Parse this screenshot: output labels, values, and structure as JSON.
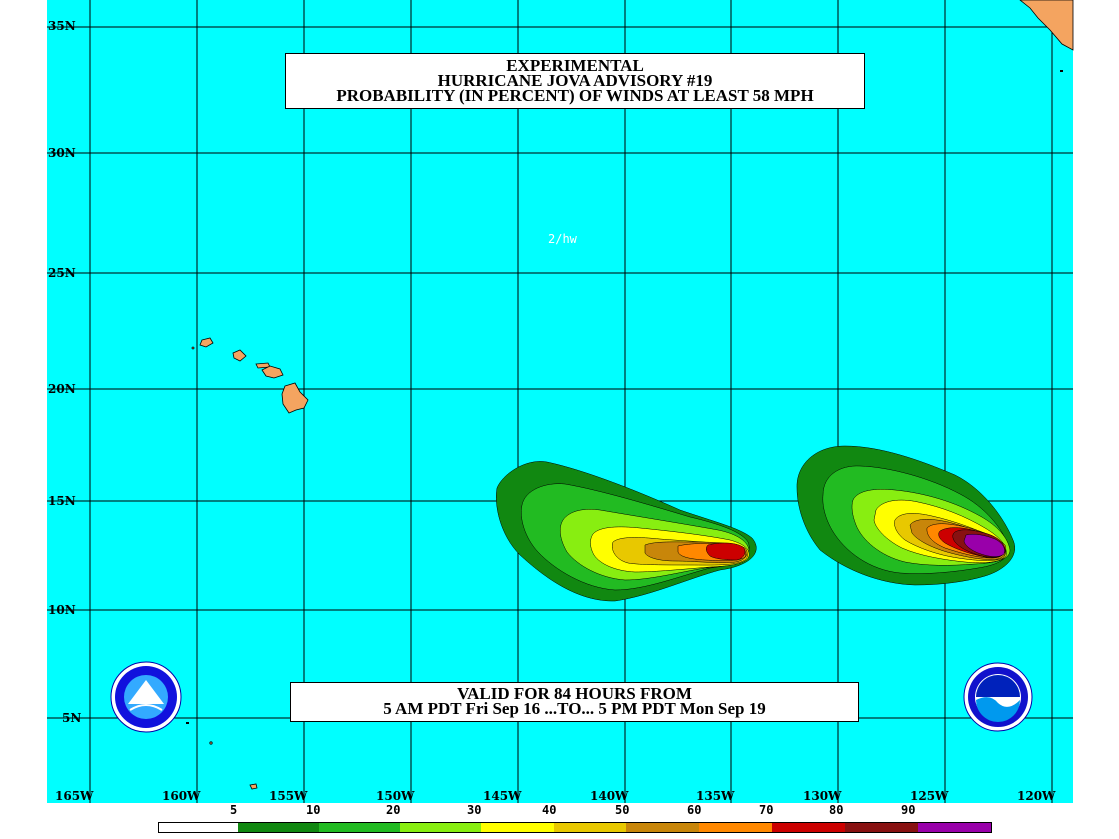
{
  "title": {
    "line1": "EXPERIMENTAL",
    "line2": "HURRICANE JOVA ADVISORY #19",
    "line3": "PROBABILITY (IN PERCENT) OF WINDS AT LEAST 58 MPH"
  },
  "valid": {
    "line1": "VALID FOR 84 HOURS FROM",
    "line2": "5 AM PDT Fri Sep 16 ...TO... 5 PM PDT Mon Sep 19"
  },
  "credit": "2/hw",
  "lat_labels": [
    "35N",
    "30N",
    "25N",
    "20N",
    "15N",
    "10N",
    "5N"
  ],
  "lon_labels": [
    "165W",
    "160W",
    "155W",
    "150W",
    "145W",
    "140W",
    "135W",
    "130W",
    "125W",
    "120W"
  ],
  "legend": {
    "values": [
      "5",
      "10",
      "20",
      "30",
      "40",
      "50",
      "60",
      "70",
      "80",
      "90"
    ],
    "colors": [
      "#ffffff",
      "#118811",
      "#22bb22",
      "#88ee11",
      "#ffff00",
      "#e8c800",
      "#c8860a",
      "#ff8800",
      "#cc0000",
      "#881111",
      "#9900aa"
    ]
  },
  "colors": {
    "ocean": "#00ffff",
    "land": "#f4a460",
    "grid": "#000000"
  }
}
